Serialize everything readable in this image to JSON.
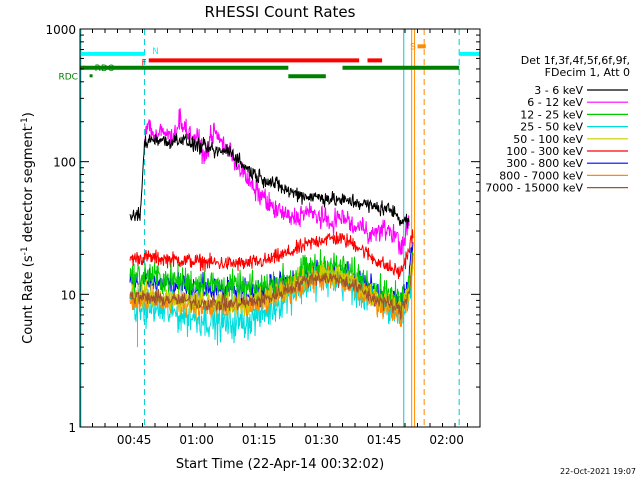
{
  "chart_data": {
    "type": "line",
    "title": "RHESSI Count Rates",
    "xlabel": "Start Time (22-Apr-14 00:32:02)",
    "ylabel": "Count Rate (s",
    "ylabel_sup": "-1",
    "ylabel_tail": " detector segment",
    "ylabel_sup2": "-1",
    "ylabel_end": ")",
    "footer": "22-Oct-2021 19:07",
    "y_scale": "log",
    "ylim": [
      1,
      1000
    ],
    "xlim_minutes": [
      0,
      96
    ],
    "x_ticks": [
      {
        "t": 13,
        "label": "00:45"
      },
      {
        "t": 28,
        "label": "01:00"
      },
      {
        "t": 43,
        "label": "01:15"
      },
      {
        "t": 58,
        "label": "01:30"
      },
      {
        "t": 73,
        "label": "01:45"
      },
      {
        "t": 88,
        "label": "02:00"
      }
    ],
    "y_ticks": [
      {
        "v": 1,
        "label": "1"
      },
      {
        "v": 10,
        "label": "10"
      },
      {
        "v": 100,
        "label": "100"
      },
      {
        "v": 1000,
        "label": "1000"
      }
    ],
    "legend": {
      "header": [
        "Det 1f,3f,4f,5f,6f,9f,",
        "FDecim 1, Att 0"
      ],
      "placement": "right"
    },
    "series": [
      {
        "name": "3 - 6 keV",
        "color": "#000000",
        "noise": 0.05,
        "points": [
          [
            12,
            38
          ],
          [
            14.5,
            40
          ],
          [
            15.5,
            140
          ],
          [
            18,
            150
          ],
          [
            21,
            140
          ],
          [
            24,
            150
          ],
          [
            27,
            135
          ],
          [
            30,
            128
          ],
          [
            33,
            118
          ],
          [
            36,
            122
          ],
          [
            39,
            95
          ],
          [
            42,
            80
          ],
          [
            46,
            70
          ],
          [
            50,
            60
          ],
          [
            54,
            55
          ],
          [
            58,
            54
          ],
          [
            62,
            51
          ],
          [
            66,
            50
          ],
          [
            70,
            46
          ],
          [
            74,
            44
          ],
          [
            76,
            40
          ],
          [
            77,
            36
          ],
          [
            78,
            38
          ],
          [
            79,
            34
          ]
        ]
      },
      {
        "name": "6 - 12 keV",
        "color": "#ff00ff",
        "noise": 0.07,
        "points": [
          [
            15.5,
            150
          ],
          [
            16.5,
            200
          ],
          [
            18,
            150
          ],
          [
            20,
            170
          ],
          [
            22,
            150
          ],
          [
            24,
            210
          ],
          [
            26,
            165
          ],
          [
            28,
            150
          ],
          [
            30,
            110
          ],
          [
            32,
            170
          ],
          [
            34,
            140
          ],
          [
            36,
            120
          ],
          [
            38,
            92
          ],
          [
            40,
            75
          ],
          [
            42,
            60
          ],
          [
            44,
            55
          ],
          [
            46,
            45
          ],
          [
            48,
            42
          ],
          [
            50,
            38
          ],
          [
            52,
            38
          ],
          [
            54,
            42
          ],
          [
            56,
            40
          ],
          [
            58,
            38
          ],
          [
            60,
            34
          ],
          [
            62,
            38
          ],
          [
            64,
            37
          ],
          [
            66,
            31
          ],
          [
            68,
            33
          ],
          [
            70,
            28
          ],
          [
            72,
            30
          ],
          [
            74,
            31
          ],
          [
            76,
            27
          ],
          [
            77,
            22
          ],
          [
            78,
            28
          ],
          [
            79,
            34
          ]
        ]
      },
      {
        "name": "12 - 25 keV",
        "color": "#00cc00",
        "noise": 0.1,
        "points": [
          [
            12,
            13
          ],
          [
            16,
            14
          ],
          [
            20,
            13
          ],
          [
            25,
            12.5
          ],
          [
            30,
            12
          ],
          [
            35,
            11.5
          ],
          [
            40,
            11
          ],
          [
            45,
            11.5
          ],
          [
            50,
            13
          ],
          [
            55,
            15.5
          ],
          [
            58,
            16.5
          ],
          [
            62,
            16
          ],
          [
            66,
            14
          ],
          [
            70,
            11.5
          ],
          [
            74,
            10
          ],
          [
            77,
            8.5
          ],
          [
            79,
            12
          ],
          [
            80,
            25
          ]
        ]
      },
      {
        "name": "25 - 50 keV",
        "color": "#00dddd",
        "noise": 0.12,
        "points": [
          [
            12,
            8.5
          ],
          [
            16,
            8
          ],
          [
            20,
            7.5
          ],
          [
            25,
            7
          ],
          [
            30,
            6.5
          ],
          [
            35,
            6
          ],
          [
            40,
            6.3
          ],
          [
            45,
            7.5
          ],
          [
            50,
            10
          ],
          [
            55,
            12.5
          ],
          [
            58,
            13.5
          ],
          [
            62,
            13
          ],
          [
            66,
            11
          ],
          [
            70,
            9
          ],
          [
            74,
            8
          ],
          [
            77,
            6.8
          ],
          [
            79,
            10
          ],
          [
            80,
            20
          ]
        ]
      },
      {
        "name": "50 - 100 keV",
        "color": "#cccc00",
        "noise": 0.08,
        "points": [
          [
            12,
            10.5
          ],
          [
            16,
            10
          ],
          [
            20,
            9.5
          ],
          [
            25,
            9
          ],
          [
            30,
            8.7
          ],
          [
            35,
            8.5
          ],
          [
            40,
            8.7
          ],
          [
            45,
            9.5
          ],
          [
            50,
            11.5
          ],
          [
            55,
            13.5
          ],
          [
            58,
            14.5
          ],
          [
            62,
            14
          ],
          [
            66,
            12
          ],
          [
            70,
            10
          ],
          [
            74,
            9
          ],
          [
            77,
            8
          ],
          [
            79,
            11
          ],
          [
            80,
            22
          ]
        ]
      },
      {
        "name": "100 - 300 keV",
        "color": "#ff0000",
        "noise": 0.05,
        "points": [
          [
            12,
            18.5
          ],
          [
            16,
            19
          ],
          [
            20,
            18.5
          ],
          [
            25,
            18
          ],
          [
            30,
            17.5
          ],
          [
            35,
            17
          ],
          [
            40,
            17
          ],
          [
            45,
            18
          ],
          [
            50,
            20.5
          ],
          [
            55,
            24
          ],
          [
            58,
            26
          ],
          [
            62,
            26.5
          ],
          [
            66,
            24
          ],
          [
            70,
            19
          ],
          [
            74,
            16
          ],
          [
            77,
            14.5
          ],
          [
            79,
            22
          ],
          [
            80,
            30
          ]
        ]
      },
      {
        "name": "300 - 800 keV",
        "color": "#0000ff",
        "noise": 0.08,
        "points": [
          [
            12,
            12
          ],
          [
            16,
            12.5
          ],
          [
            20,
            12
          ],
          [
            25,
            11.5
          ],
          [
            30,
            11
          ],
          [
            35,
            10.5
          ],
          [
            40,
            10.5
          ],
          [
            45,
            11
          ],
          [
            50,
            12.5
          ],
          [
            55,
            14.5
          ],
          [
            58,
            15.5
          ],
          [
            62,
            15
          ],
          [
            66,
            13
          ],
          [
            70,
            11
          ],
          [
            74,
            9.5
          ],
          [
            77,
            8.5
          ],
          [
            79,
            14
          ],
          [
            80,
            26
          ]
        ]
      },
      {
        "name": "800 - 7000 keV",
        "color": "#ff8c00",
        "noise": 0.08,
        "points": [
          [
            12,
            9.2
          ],
          [
            16,
            9
          ],
          [
            20,
            8.8
          ],
          [
            25,
            8.5
          ],
          [
            30,
            8
          ],
          [
            35,
            7.8
          ],
          [
            40,
            8
          ],
          [
            45,
            8.8
          ],
          [
            50,
            10.5
          ],
          [
            55,
            12.5
          ],
          [
            58,
            13
          ],
          [
            62,
            12.5
          ],
          [
            66,
            11
          ],
          [
            70,
            9
          ],
          [
            74,
            8
          ],
          [
            77,
            7
          ],
          [
            79,
            10
          ],
          [
            80,
            20
          ]
        ]
      },
      {
        "name": "7000 - 15000 keV",
        "color": "#a0522d",
        "noise": 0.05,
        "points": [
          [
            12,
            9.6
          ],
          [
            16,
            9.4
          ],
          [
            20,
            9.2
          ],
          [
            25,
            9
          ],
          [
            30,
            8.6
          ],
          [
            35,
            8.4
          ],
          [
            40,
            8.6
          ],
          [
            45,
            9.3
          ],
          [
            50,
            11
          ],
          [
            55,
            13
          ],
          [
            58,
            13.5
          ],
          [
            62,
            13
          ],
          [
            66,
            11.5
          ],
          [
            70,
            9.5
          ],
          [
            74,
            8.5
          ],
          [
            77,
            7.5
          ],
          [
            79,
            10.5
          ],
          [
            80,
            21
          ]
        ]
      }
    ],
    "flag_bars": [
      {
        "name": "N",
        "label": "N",
        "color": "#00ffff",
        "level": 650,
        "segments": [
          [
            0,
            15.5
          ],
          [
            91,
            96
          ]
        ]
      },
      {
        "name": "F",
        "label": "F",
        "color": "#ff0000",
        "level": 580,
        "segments": [
          [
            16.5,
            67
          ],
          [
            69,
            72.5
          ]
        ]
      },
      {
        "name": "S",
        "label": "S",
        "color": "#ff8c00",
        "level": 740,
        "segments": [
          [
            81,
            83
          ]
        ]
      },
      {
        "name": "RDO",
        "label": "RDO",
        "color": "#008000",
        "level": 510,
        "segments": [
          [
            0,
            50
          ],
          [
            63,
            91
          ]
        ]
      },
      {
        "name": "RDC",
        "label": "RDC",
        "color": "#008000",
        "level": 440,
        "segments": [
          [
            50,
            59
          ]
        ]
      }
    ],
    "vlines": [
      {
        "t": 15.5,
        "color": "#00cccc",
        "style": "dashed"
      },
      {
        "t": 91,
        "color": "#00cccc",
        "style": "dashed"
      },
      {
        "t": 0.2,
        "color": "#00cccc",
        "style": "solid"
      },
      {
        "t": 77.7,
        "color": "#00cccc",
        "style": "solid"
      },
      {
        "t": 79.6,
        "color": "#ff8c00",
        "style": "solid"
      },
      {
        "t": 80.3,
        "color": "#ff8c00",
        "style": "solid"
      },
      {
        "t": 82.6,
        "color": "#ff8c00",
        "style": "dashed"
      }
    ]
  }
}
